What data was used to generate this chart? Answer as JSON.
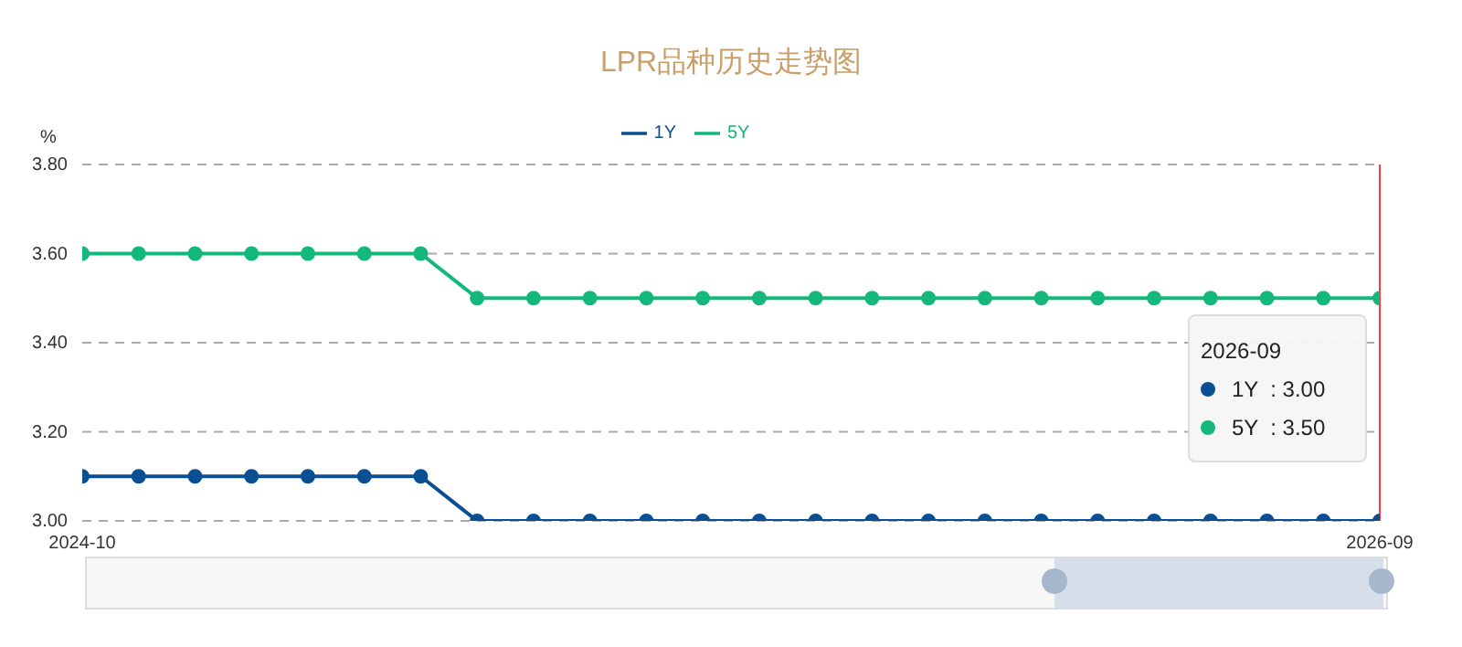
{
  "chart_data": {
    "type": "line",
    "title": "LPR品种历史走势图",
    "ylabel": "%",
    "categories": [
      "2024-10",
      null,
      null,
      null,
      null,
      null,
      null,
      null,
      null,
      null,
      null,
      null,
      null,
      null,
      null,
      null,
      null,
      null,
      null,
      null,
      null,
      null,
      null,
      "2026-09"
    ],
    "series": [
      {
        "name": "1Y",
        "color": "#0a4f93",
        "values": [
          3.1,
          3.1,
          3.1,
          3.1,
          3.1,
          3.1,
          3.1,
          3.0,
          3.0,
          3.0,
          3.0,
          3.0,
          3.0,
          3.0,
          3.0,
          3.0,
          3.0,
          3.0,
          3.0,
          3.0,
          3.0,
          3.0,
          3.0,
          3.0
        ]
      },
      {
        "name": "5Y",
        "color": "#14b87a",
        "values": [
          3.6,
          3.6,
          3.6,
          3.6,
          3.6,
          3.6,
          3.6,
          3.5,
          3.5,
          3.5,
          3.5,
          3.5,
          3.5,
          3.5,
          3.5,
          3.5,
          3.5,
          3.5,
          3.5,
          3.5,
          3.5,
          3.5,
          3.5,
          3.5
        ]
      }
    ],
    "ylim": [
      3.0,
      3.8
    ],
    "yticks": [
      {
        "value": 3.0,
        "label": "3.00"
      },
      {
        "value": 3.2,
        "label": "3.20"
      },
      {
        "value": 3.4,
        "label": "3.40"
      },
      {
        "value": 3.6,
        "label": "3.60"
      },
      {
        "value": 3.8,
        "label": "3.80"
      }
    ],
    "grid": "y",
    "legend": "top",
    "marker": "circle",
    "line_style": "solid",
    "ref_lines": [
      {
        "axis": "x",
        "value": "2026-09",
        "color": "#ff3b3b"
      }
    ],
    "annotations": [
      "2026-09",
      "1Y  : 3.00",
      "5Y  : 3.50"
    ]
  }
}
